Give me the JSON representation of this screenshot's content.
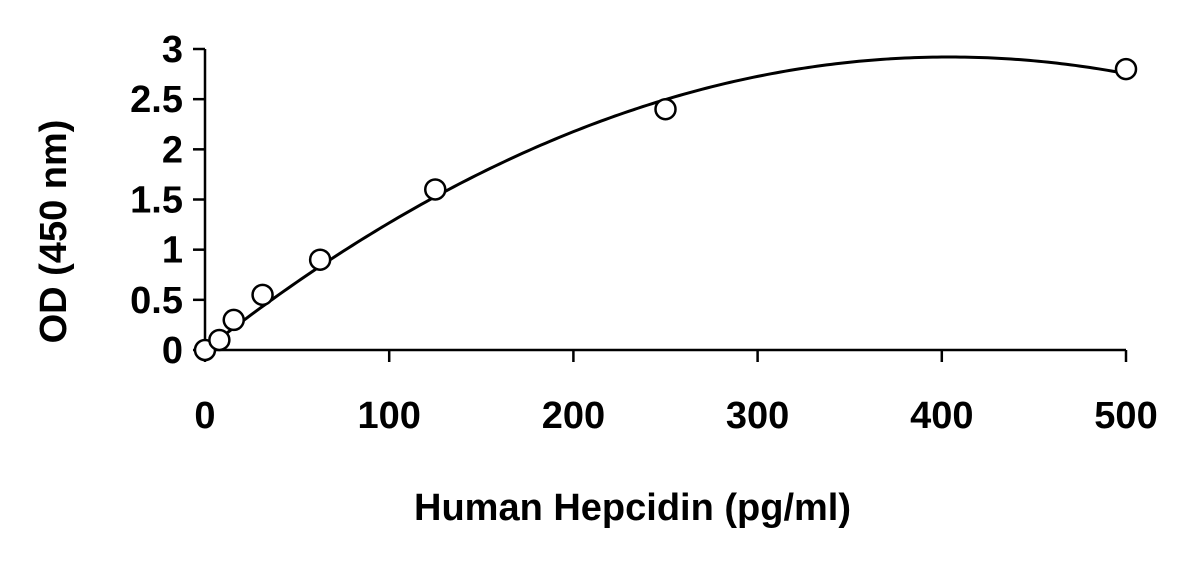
{
  "chart_data": {
    "type": "scatter",
    "title": "",
    "xlabel": "Human Hepcidin (pg/ml)",
    "ylabel": "OD (450 nm)",
    "xlim": [
      0,
      500
    ],
    "ylim": [
      0,
      3
    ],
    "x_ticks": [
      0,
      100,
      200,
      300,
      400,
      500
    ],
    "y_ticks": [
      0,
      0.5,
      1,
      1.5,
      2,
      2.5,
      3
    ],
    "x_tick_labels": [
      "0",
      "100",
      "200",
      "300",
      "400",
      "500"
    ],
    "y_tick_labels": [
      "0",
      "0.5",
      "1",
      "1.5",
      "2",
      "2.5",
      "3"
    ],
    "grid": false,
    "legend": "none",
    "series": [
      {
        "marker": "open-circle",
        "x": [
          0,
          7.8,
          15.6,
          31.25,
          62.5,
          125,
          250,
          500
        ],
        "y": [
          0.0,
          0.1,
          0.3,
          0.55,
          0.9,
          1.6,
          2.4,
          2.8
        ]
      }
    ],
    "fit_curve": {
      "kind": "quadratic",
      "coefficients": [
        0.0,
        0.01446,
        -1.79e-05
      ]
    },
    "colors": {
      "line": "#000000",
      "marker_fill": "#ffffff",
      "marker_stroke": "#000000"
    }
  }
}
